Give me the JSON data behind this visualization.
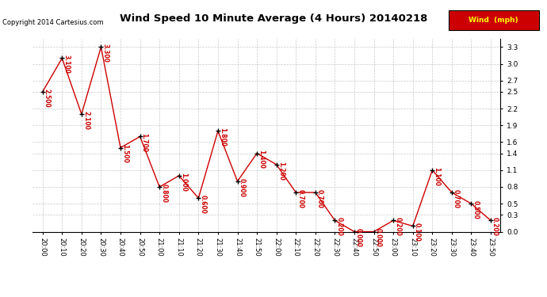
{
  "title": "Wind Speed 10 Minute Average (4 Hours) 20140218",
  "copyright": "Copyright 2014 Cartesius.com",
  "legend_label": "Wind  (mph)",
  "times": [
    "20:00",
    "20:10",
    "20:20",
    "20:30",
    "20:40",
    "20:50",
    "21:00",
    "21:10",
    "21:20",
    "21:30",
    "21:40",
    "21:50",
    "22:00",
    "22:10",
    "22:20",
    "22:30",
    "22:40",
    "22:50",
    "23:00",
    "23:10",
    "23:20",
    "23:30",
    "23:40",
    "23:50"
  ],
  "values": [
    2.5,
    3.1,
    2.1,
    3.3,
    1.5,
    1.7,
    0.8,
    1.0,
    0.6,
    1.8,
    0.9,
    1.4,
    1.2,
    0.7,
    0.7,
    0.2,
    0.0,
    0.0,
    0.2,
    0.1,
    1.1,
    0.7,
    0.5,
    0.2
  ],
  "yticks": [
    0.0,
    0.3,
    0.5,
    0.8,
    1.1,
    1.4,
    1.6,
    1.9,
    2.2,
    2.5,
    2.7,
    3.0,
    3.3
  ],
  "ylim": [
    0.0,
    3.45
  ],
  "line_color": "#cc0000",
  "marker_color": "#000000",
  "annotation_color": "#cc0000",
  "bg_color": "#ffffff",
  "grid_color": "#bbbbbb",
  "legend_bg": "#cc0000",
  "legend_text_color": "#ffff00",
  "title_fontsize": 9.5,
  "copyright_fontsize": 6,
  "annotation_fontsize": 5.5
}
